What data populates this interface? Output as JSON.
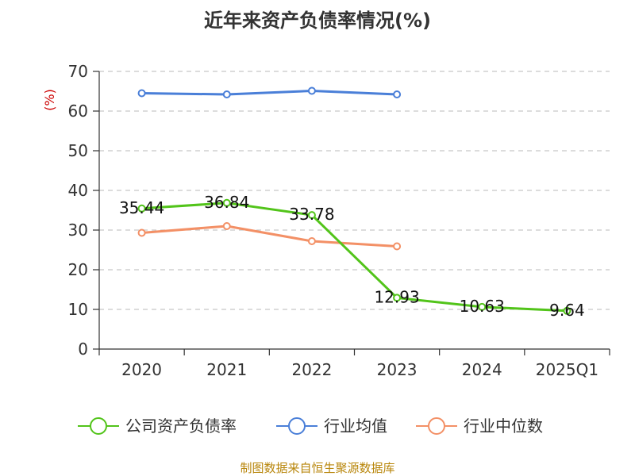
{
  "chart_data": {
    "type": "line",
    "title": "近年来资产负债率情况(%)",
    "ylabel": "(%)",
    "xlabel": "",
    "categories": [
      "2020",
      "2021",
      "2022",
      "2023",
      "2024",
      "2025Q1"
    ],
    "ylim": [
      0,
      70
    ],
    "yticks": [
      0,
      10,
      20,
      30,
      40,
      50,
      60,
      70
    ],
    "grid": true,
    "legend_position": "bottom",
    "series": [
      {
        "name": "公司资产负债率",
        "color": "#52c41a",
        "values": [
          35.44,
          36.84,
          33.78,
          12.93,
          10.63,
          9.64
        ],
        "labels": [
          "35.44",
          "36.84",
          "33.78",
          "12.93",
          "10.63",
          "9.64"
        ]
      },
      {
        "name": "行业均值",
        "color": "#4a7fd8",
        "values": [
          64.5,
          64.2,
          65.1,
          64.2,
          null,
          null
        ]
      },
      {
        "name": "行业中位数",
        "color": "#f39066",
        "values": [
          29.3,
          31.0,
          27.2,
          25.9,
          null,
          null
        ]
      }
    ]
  },
  "source": "制图数据来自恒生聚源数据库"
}
